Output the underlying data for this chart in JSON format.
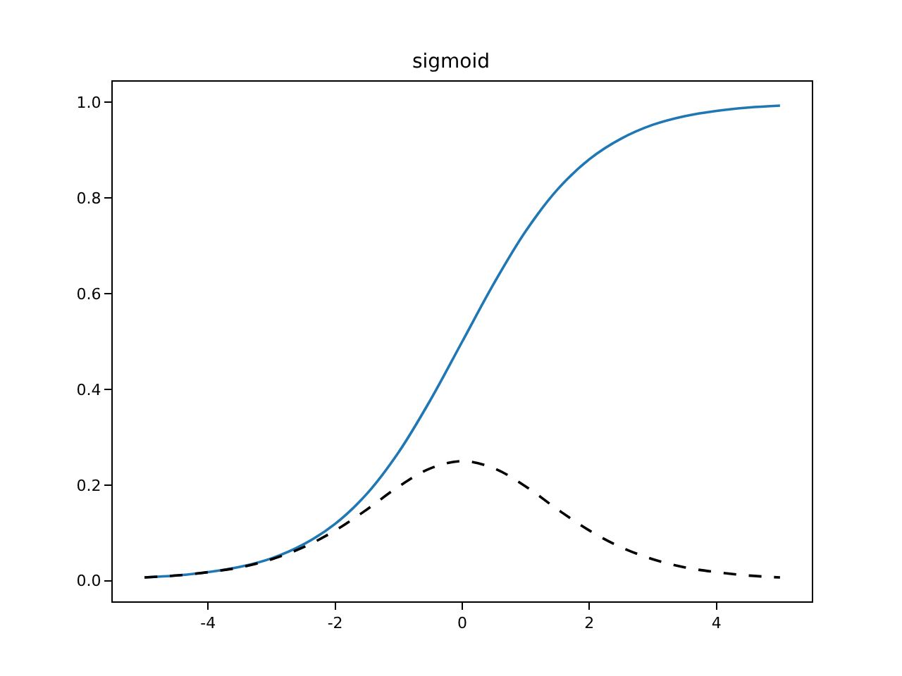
{
  "chart_data": {
    "type": "line",
    "title": "sigmoid",
    "x": [
      -5,
      -4.5,
      -4,
      -3.5,
      -3,
      -2.5,
      -2,
      -1.5,
      -1,
      -0.5,
      0,
      0.5,
      1,
      1.5,
      2,
      2.5,
      3,
      3.5,
      4,
      4.5,
      5
    ],
    "series": [
      {
        "color": "#1f77b4",
        "line_style": "solid",
        "values": [
          0.007,
          0.011,
          0.018,
          0.029,
          0.047,
          0.076,
          0.119,
          0.182,
          0.269,
          0.378,
          0.5,
          0.622,
          0.731,
          0.818,
          0.881,
          0.924,
          0.953,
          0.971,
          0.982,
          0.989,
          0.993
        ]
      },
      {
        "color": "#000000",
        "line_style": "dashed",
        "values": [
          0.007,
          0.011,
          0.018,
          0.028,
          0.045,
          0.07,
          0.105,
          0.149,
          0.197,
          0.235,
          0.25,
          0.235,
          0.197,
          0.149,
          0.105,
          0.07,
          0.045,
          0.028,
          0.018,
          0.011,
          0.007
        ]
      }
    ],
    "xlim": [
      -5.5,
      5.5
    ],
    "xticks": [
      -4,
      -2,
      0,
      2,
      4
    ],
    "ylim": [
      -0.043,
      1.043
    ],
    "yticks": [
      {
        "value": 0,
        "label": "0.0"
      },
      {
        "value": 0.2,
        "label": "0.2"
      },
      {
        "value": 0.4,
        "label": "0.4"
      },
      {
        "value": 0.6,
        "label": "0.6"
      },
      {
        "value": 0.8,
        "label": "0.8"
      },
      {
        "value": 1,
        "label": "1.0"
      }
    ],
    "marker": "none"
  }
}
